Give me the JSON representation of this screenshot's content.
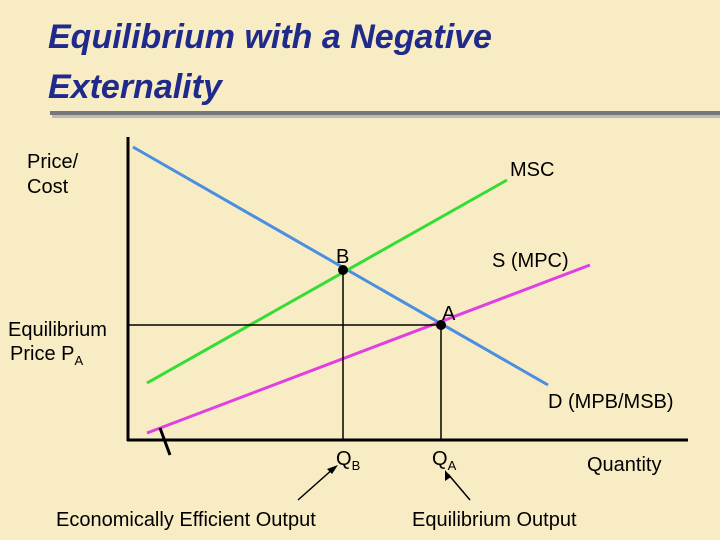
{
  "title": {
    "line1": "Equilibrium with a Negative",
    "line2": "Externality"
  },
  "axes": {
    "y_label": {
      "line1": "Price/",
      "line2": "Cost"
    },
    "x_label": "Quantity"
  },
  "curves": {
    "msc": "MSC",
    "supply": "S (MPC)",
    "demand": "D (MPB/MSB)"
  },
  "points": {
    "b": "B",
    "a": "A"
  },
  "equilibrium_price": {
    "line1": "Equilibrium",
    "line2": "Price P",
    "sub": "A"
  },
  "quantities": {
    "qb": {
      "text": "Q",
      "sub": "B"
    },
    "qa": {
      "text": "Q",
      "sub": "A"
    }
  },
  "notes": {
    "efficient": "Economically Efficient Output",
    "equilibrium": "Equilibrium Output"
  }
}
